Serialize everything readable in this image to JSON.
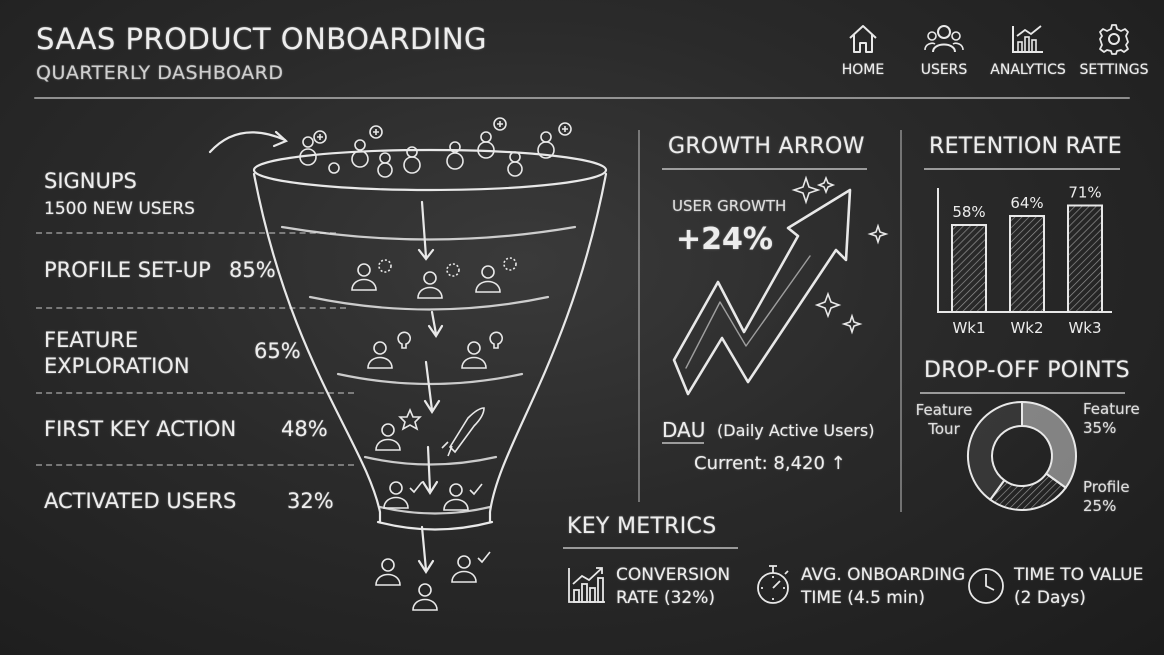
{
  "header": {
    "title": "SAAS PRODUCT ONBOARDING",
    "subtitle": "QUARTERLY DASHBOARD"
  },
  "nav": [
    {
      "label": "HOME",
      "icon": "home-icon"
    },
    {
      "label": "USERS",
      "icon": "users-icon"
    },
    {
      "label": "ANALYTICS",
      "icon": "analytics-icon"
    },
    {
      "label": "SETTINGS",
      "icon": "gear-icon"
    }
  ],
  "funnel": {
    "signups": {
      "label": "SIGNUPS",
      "detail": "1500 NEW USERS"
    },
    "stages": [
      {
        "label": "PROFILE SET-UP",
        "value": "85%"
      },
      {
        "label_line1": "FEATURE",
        "label_line2": "EXPLORATION",
        "value": "65%"
      },
      {
        "label": "FIRST KEY ACTION",
        "value": "48%"
      },
      {
        "label": "ACTIVATED USERS",
        "value": "32%"
      }
    ]
  },
  "growth": {
    "title": "GROWTH ARROW",
    "label": "USER GROWTH",
    "value": "+24%",
    "dau_abbr": "DAU",
    "dau_desc": "(Daily Active Users)",
    "current": "Current: 8,420 ↑"
  },
  "retention": {
    "title": "RETENTION RATE",
    "chart_data": {
      "type": "bar",
      "categories": [
        "Wk1",
        "Wk2",
        "Wk3"
      ],
      "values": [
        58,
        64,
        71
      ],
      "data_labels": [
        "58%",
        "64%",
        "71%"
      ],
      "ylim": [
        0,
        100
      ],
      "grid": false
    }
  },
  "dropoff": {
    "title": "DROP-OFF POINTS",
    "chart_data": {
      "type": "pie",
      "donut": true,
      "slices": [
        {
          "name": "Feature",
          "value": 35,
          "label": "35%"
        },
        {
          "name": "Profile",
          "value": 25,
          "label": "25%"
        },
        {
          "name": "Feature Tour",
          "value": 40,
          "label": ""
        }
      ]
    },
    "labels": {
      "feature_tour_1": "Feature",
      "feature_tour_2": "Tour",
      "feature": "Feature",
      "feature_pct": "35%",
      "profile": "Profile",
      "profile_pct": "25%"
    }
  },
  "key_metrics": {
    "title": "KEY METRICS",
    "items": [
      {
        "line1": "CONVERSION",
        "line2": "RATE (32%)",
        "icon": "chart-icon"
      },
      {
        "line1": "AVG. ONBOARDING",
        "line2": "TIME (4.5 min)",
        "icon": "stopwatch-icon"
      },
      {
        "line1": "TIME TO VALUE",
        "line2": "(2 Days)",
        "icon": "clock-icon"
      }
    ]
  }
}
